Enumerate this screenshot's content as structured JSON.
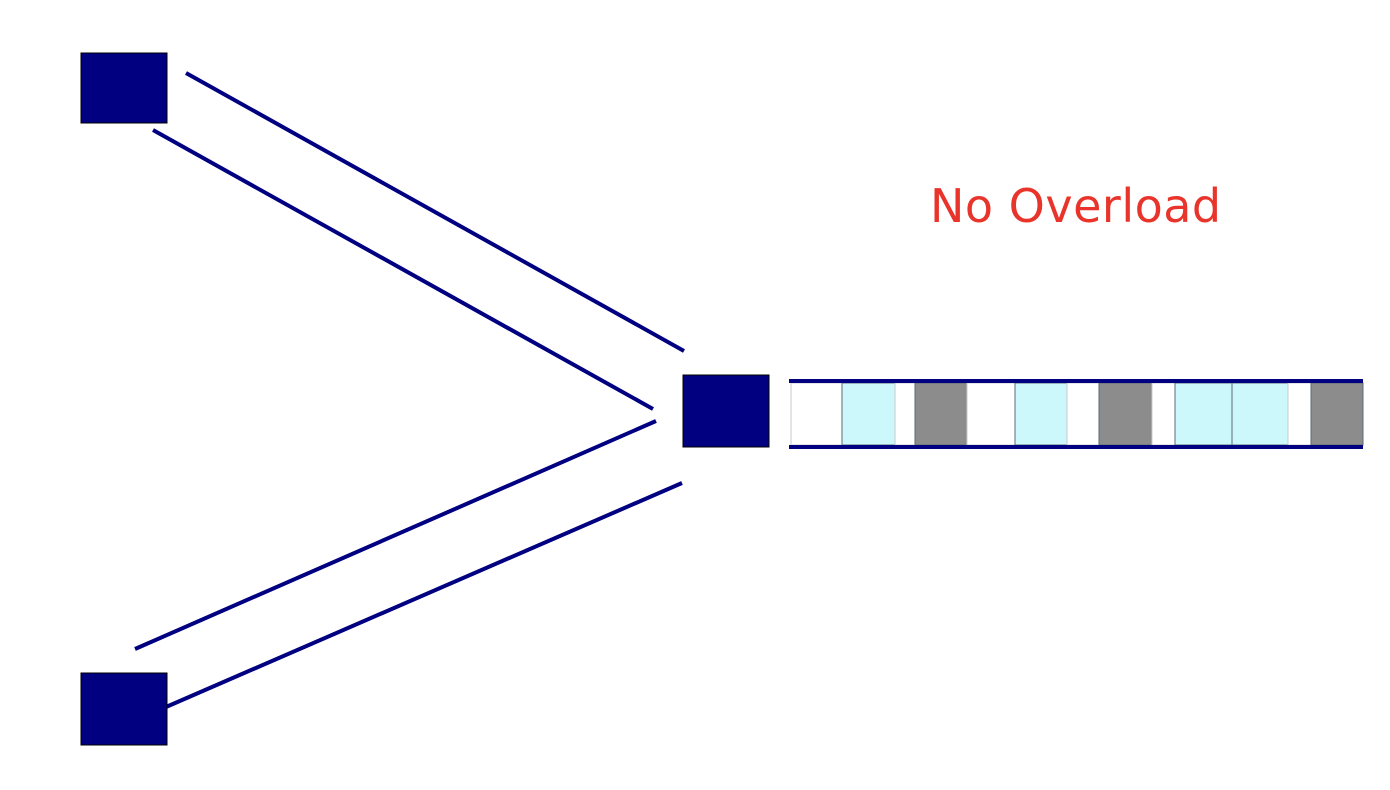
{
  "caption": "No Overload",
  "colors": {
    "node_fill": "#000080",
    "node_stroke": "#000000",
    "link_stroke": "#000080",
    "caption_text": "#e8342a",
    "packet_light": "#ccf8fc",
    "packet_dark": "#8c8c8c",
    "slot_empty": "#ffffff",
    "slot_border": "#5e6b74"
  },
  "nodes": [
    {
      "name": "sender-top"
    },
    {
      "name": "sender-bottom"
    },
    {
      "name": "router"
    }
  ],
  "queue_slots": [
    "empty",
    "light",
    "empty",
    "dark",
    "empty",
    "light",
    "empty",
    "dark",
    "empty",
    "light",
    "light",
    "empty",
    "dark"
  ]
}
